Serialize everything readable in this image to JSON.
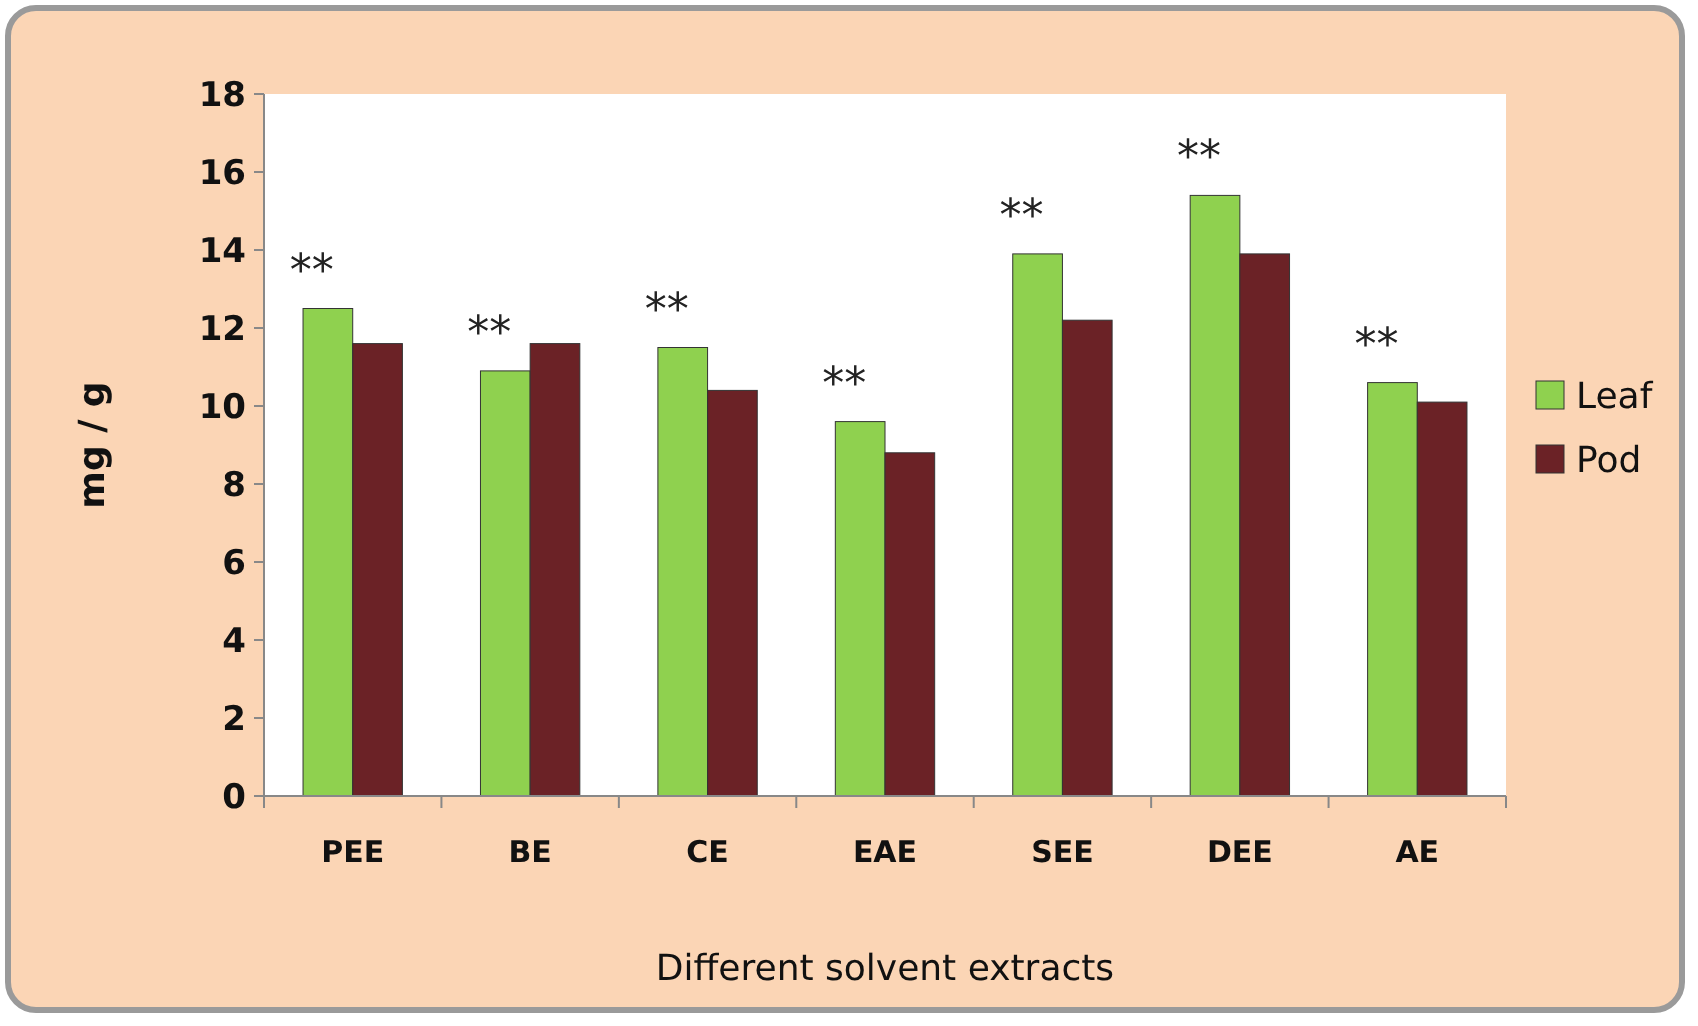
{
  "chart_data": {
    "type": "bar",
    "xlabel": "Different solvent extracts",
    "ylabel": "mg / g",
    "categories": [
      "PEE",
      "BE",
      "CE",
      "EAE",
      "SEE",
      "DEE",
      "AE"
    ],
    "series": [
      {
        "name": "Leaf",
        "color": "#8fd14f",
        "values": [
          12.5,
          10.9,
          11.5,
          9.6,
          13.9,
          15.4,
          10.6
        ]
      },
      {
        "name": "Pod",
        "color": "#6b2226",
        "values": [
          11.6,
          11.6,
          10.4,
          8.8,
          12.2,
          13.9,
          10.1
        ]
      }
    ],
    "ylim": [
      0,
      18
    ],
    "yticks": [
      0,
      2,
      4,
      6,
      8,
      10,
      12,
      14,
      16,
      18
    ],
    "grid": false,
    "legend": "right",
    "annotations": [
      {
        "text": "**",
        "x": "PEE",
        "y": 12.5
      },
      {
        "text": "**",
        "x": "BE",
        "y": 10.9
      },
      {
        "text": "**",
        "x": "CE",
        "y": 11.5
      },
      {
        "text": "**",
        "x": "EAE",
        "y": 9.6
      },
      {
        "text": "**",
        "x": "SEE",
        "y": 13.9
      },
      {
        "text": "**",
        "x": "DEE",
        "y": 15.4
      },
      {
        "text": "**",
        "x": "AE",
        "y": 10.6
      }
    ]
  }
}
